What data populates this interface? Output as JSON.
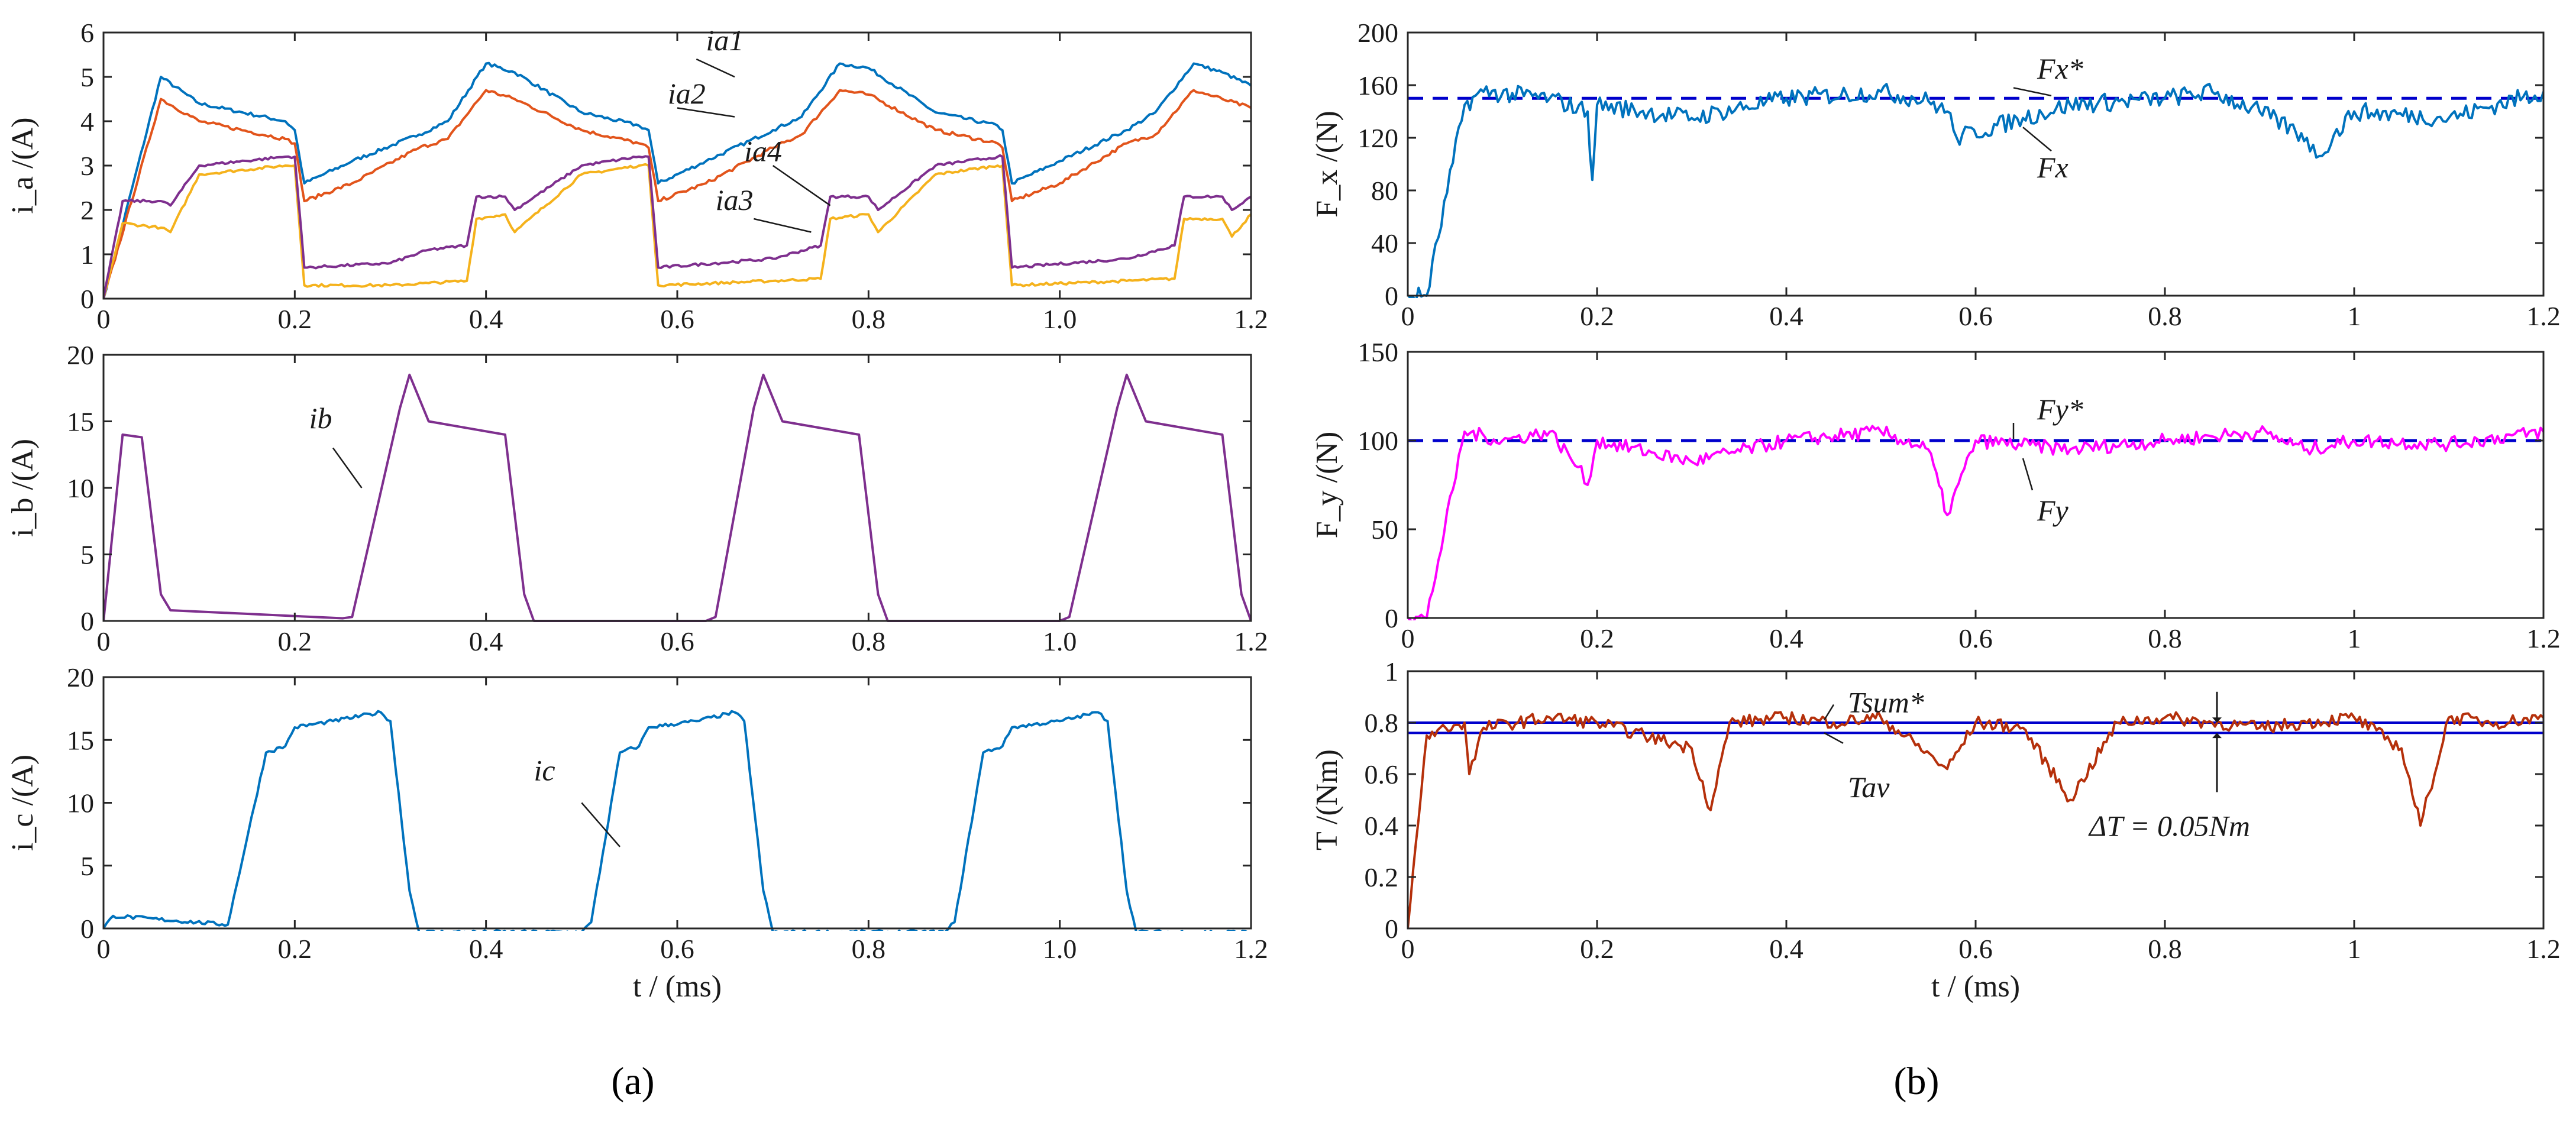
{
  "panel_labels": {
    "a": "(a)",
    "b": "(b)"
  },
  "colors": {
    "ia1": "#0072BD",
    "ia2": "#E2541B",
    "ia3": "#F5B21C",
    "ia4": "#7E2F8E",
    "ib": "#7E2F8E",
    "ic": "#0072BD",
    "fx": "#0072BD",
    "fy": "#FF00FF",
    "torque": "#B5300B",
    "ref": "#0000CC"
  },
  "chart_data": [
    {
      "id": "ia",
      "type": "line",
      "xlabel": "",
      "ylabel": "i_a /(A)",
      "xlim": [
        0,
        1.2
      ],
      "ylim": [
        0,
        6
      ],
      "xticks": [
        "0",
        "0.2",
        "0.4",
        "0.6",
        "0.8",
        "1.0",
        "1.2"
      ],
      "yticks": [
        "0",
        "1",
        "2",
        "3",
        "4",
        "5",
        "6"
      ],
      "annotations": [
        "ia1",
        "ia2",
        "ia3",
        "ia4"
      ],
      "series": [
        {
          "name": "ia1",
          "x": [
            0,
            0.06,
            0.1,
            0.19,
            0.2,
            0.21,
            0.26,
            0.33,
            0.36,
            0.4,
            0.43,
            0.5,
            0.56,
            0.57,
            0.58,
            0.63,
            0.7,
            0.73,
            0.77,
            0.8,
            0.87,
            0.935,
            0.94,
            0.95,
            1.0,
            1.07,
            1.1,
            1.14,
            1.17,
            1.2
          ],
          "values": [
            0,
            5.0,
            4.4,
            4.0,
            3.8,
            2.6,
            3.1,
            3.7,
            4.0,
            5.3,
            5.1,
            4.2,
            3.9,
            3.8,
            2.6,
            3.1,
            3.8,
            4.1,
            5.3,
            5.2,
            4.2,
            3.9,
            3.8,
            2.6,
            3.1,
            3.8,
            4.2,
            5.3,
            5.1,
            4.8
          ]
        },
        {
          "name": "ia2",
          "x": [
            0,
            0.06,
            0.1,
            0.19,
            0.2,
            0.21,
            0.26,
            0.33,
            0.36,
            0.4,
            0.43,
            0.5,
            0.56,
            0.57,
            0.58,
            0.63,
            0.7,
            0.73,
            0.77,
            0.8,
            0.87,
            0.935,
            0.94,
            0.95,
            1.0,
            1.07,
            1.1,
            1.14,
            1.17,
            1.2
          ],
          "values": [
            0,
            4.5,
            4.0,
            3.6,
            3.5,
            2.2,
            2.6,
            3.4,
            3.6,
            4.7,
            4.5,
            3.8,
            3.5,
            3.4,
            2.2,
            2.6,
            3.4,
            3.7,
            4.7,
            4.6,
            3.8,
            3.5,
            3.4,
            2.2,
            2.6,
            3.5,
            3.7,
            4.7,
            4.5,
            4.3
          ]
        },
        {
          "name": "ia3",
          "x": [
            0,
            0.02,
            0.06,
            0.07,
            0.1,
            0.19,
            0.2,
            0.21,
            0.3,
            0.34,
            0.38,
            0.39,
            0.42,
            0.43,
            0.5,
            0.56,
            0.57,
            0.58,
            0.7,
            0.75,
            0.76,
            0.8,
            0.81,
            0.87,
            0.935,
            0.94,
            0.95,
            1.07,
            1.12,
            1.13,
            1.17,
            1.18,
            1.2
          ],
          "values": [
            0,
            1.7,
            1.6,
            1.5,
            2.8,
            3.0,
            3.0,
            0.3,
            0.3,
            0.35,
            0.4,
            1.8,
            1.9,
            1.5,
            2.8,
            3.0,
            3.0,
            0.3,
            0.4,
            0.45,
            1.8,
            1.9,
            1.5,
            2.8,
            3.0,
            3.0,
            0.3,
            0.4,
            0.45,
            1.8,
            1.8,
            1.4,
            1.9
          ]
        },
        {
          "name": "ia4",
          "x": [
            0,
            0.02,
            0.06,
            0.07,
            0.1,
            0.19,
            0.2,
            0.21,
            0.3,
            0.34,
            0.38,
            0.39,
            0.42,
            0.43,
            0.5,
            0.56,
            0.57,
            0.58,
            0.7,
            0.75,
            0.76,
            0.8,
            0.81,
            0.87,
            0.935,
            0.94,
            0.95,
            1.07,
            1.12,
            1.13,
            1.17,
            1.18,
            1.2
          ],
          "values": [
            0,
            2.2,
            2.2,
            2.1,
            3.0,
            3.2,
            3.2,
            0.7,
            0.8,
            1.1,
            1.2,
            2.3,
            2.3,
            2.0,
            3.0,
            3.2,
            3.2,
            0.7,
            0.9,
            1.2,
            2.3,
            2.3,
            2.0,
            3.0,
            3.2,
            3.2,
            0.7,
            0.9,
            1.2,
            2.3,
            2.3,
            2.0,
            2.3
          ]
        }
      ]
    },
    {
      "id": "ib",
      "type": "line",
      "xlabel": "",
      "ylabel": "i_b /(A)",
      "xlim": [
        0,
        1.2
      ],
      "ylim": [
        0,
        20
      ],
      "xticks": [
        "0",
        "0.2",
        "0.4",
        "0.6",
        "0.8",
        "1.0",
        "1.2"
      ],
      "yticks": [
        "0",
        "5",
        "10",
        "15",
        "20"
      ],
      "annotations": [
        "ib"
      ],
      "series": [
        {
          "name": "ib",
          "x": [
            0,
            0.02,
            0.04,
            0.06,
            0.07,
            0.25,
            0.26,
            0.31,
            0.32,
            0.34,
            0.42,
            0.44,
            0.45,
            0.63,
            0.64,
            0.68,
            0.69,
            0.71,
            0.79,
            0.81,
            0.82,
            1.0,
            1.01,
            1.06,
            1.07,
            1.09,
            1.17,
            1.19,
            1.2
          ],
          "values": [
            0,
            14,
            13.8,
            2,
            0.8,
            0.2,
            0.3,
            16,
            18.5,
            15,
            14,
            2,
            0,
            0,
            0.3,
            16,
            18.5,
            15,
            14,
            2,
            0,
            0,
            0.3,
            16,
            18.5,
            15,
            14,
            2,
            0
          ]
        }
      ]
    },
    {
      "id": "ic",
      "type": "line",
      "xlabel": "t / (ms)",
      "ylabel": "i_c /(A)",
      "xlim": [
        0,
        1.2
      ],
      "ylim": [
        0,
        20
      ],
      "xticks": [
        "0",
        "0.2",
        "0.4",
        "0.6",
        "0.8",
        "1.0",
        "1.2"
      ],
      "yticks": [
        "0",
        "5",
        "10",
        "15",
        "20"
      ],
      "annotations": [
        "ic"
      ],
      "series": [
        {
          "name": "ic",
          "x": [
            0,
            0.01,
            0.13,
            0.17,
            0.19,
            0.2,
            0.24,
            0.29,
            0.3,
            0.32,
            0.33,
            0.5,
            0.51,
            0.54,
            0.56,
            0.57,
            0.62,
            0.66,
            0.67,
            0.69,
            0.7,
            0.88,
            0.89,
            0.92,
            0.94,
            0.95,
            1.0,
            1.04,
            1.05,
            1.07,
            1.08,
            1.2
          ],
          "values": [
            0,
            1,
            0.3,
            14,
            14.5,
            16,
            16.5,
            17.2,
            16.5,
            3,
            -0.3,
            -0.3,
            0.5,
            14,
            14.5,
            16,
            16.5,
            17.2,
            16.5,
            3,
            -0.3,
            -0.3,
            0.5,
            14,
            14.5,
            16,
            16.5,
            17.2,
            16.5,
            3,
            -0.3,
            -0.3
          ]
        }
      ]
    },
    {
      "id": "fx",
      "type": "line",
      "xlabel": "",
      "ylabel": "F_x /(N)",
      "xlim": [
        0,
        1.2
      ],
      "ylim": [
        0,
        200
      ],
      "xticks": [
        "0",
        "0.2",
        "0.4",
        "0.6",
        "0.8",
        "1",
        "1.2"
      ],
      "yticks": [
        "0",
        "40",
        "80",
        "120",
        "160",
        "200"
      ],
      "annotations": [
        "Fx*",
        "Fx"
      ],
      "series": [
        {
          "name": "Fx*",
          "style": "dashed",
          "x": [
            0,
            1.2
          ],
          "values": [
            150,
            150
          ]
        },
        {
          "name": "Fx",
          "x": [
            0,
            0.02,
            0.06,
            0.08,
            0.15,
            0.19,
            0.195,
            0.2,
            0.3,
            0.4,
            0.5,
            0.55,
            0.57,
            0.58,
            0.65,
            0.7,
            0.8,
            0.85,
            0.9,
            0.95,
            0.96,
            1.0,
            1.1,
            1.2
          ],
          "values": [
            0,
            0,
            145,
            155,
            150,
            140,
            88,
            145,
            135,
            150,
            155,
            148,
            140,
            120,
            135,
            145,
            150,
            155,
            140,
            120,
            105,
            140,
            135,
            155
          ]
        }
      ]
    },
    {
      "id": "fy",
      "type": "line",
      "xlabel": "",
      "ylabel": "F_y /(N)",
      "xlim": [
        0,
        1.2
      ],
      "ylim": [
        0,
        150
      ],
      "xticks": [
        "0",
        "0.2",
        "0.4",
        "0.6",
        "0.8",
        "1",
        "1.2"
      ],
      "yticks": [
        "0",
        "50",
        "100",
        "150"
      ],
      "annotations": [
        "Fy*",
        "Fy"
      ],
      "series": [
        {
          "name": "Fy*",
          "style": "dashed",
          "x": [
            0,
            1.2
          ],
          "values": [
            100,
            100
          ]
        },
        {
          "name": "Fy",
          "x": [
            0,
            0.02,
            0.06,
            0.1,
            0.15,
            0.18,
            0.19,
            0.2,
            0.3,
            0.4,
            0.5,
            0.55,
            0.57,
            0.6,
            0.7,
            0.8,
            0.9,
            0.95,
            1.0,
            1.1,
            1.2
          ],
          "values": [
            0,
            0,
            105,
            100,
            105,
            85,
            75,
            100,
            88,
            100,
            105,
            95,
            58,
            100,
            95,
            100,
            105,
            95,
            100,
            98,
            105
          ]
        }
      ]
    },
    {
      "id": "torque",
      "type": "line",
      "xlabel": "t / (ms)",
      "ylabel": "T /(Nm)",
      "xlim": [
        0,
        1.2
      ],
      "ylim": [
        0,
        1
      ],
      "xticks": [
        "0",
        "0.2",
        "0.4",
        "0.6",
        "0.8",
        "1",
        "1.2"
      ],
      "yticks": [
        "0",
        "0.2",
        "0.4",
        "0.6",
        "0.8",
        "1"
      ],
      "annotations": [
        "Tsum*",
        "Tav",
        "ΔT = 0.05Nm"
      ],
      "series": [
        {
          "name": "Tsum*",
          "x": [
            0,
            1.2
          ],
          "values": [
            0.8,
            0.8
          ]
        },
        {
          "name": "Tav",
          "x": [
            0,
            1.2
          ],
          "values": [
            0.76,
            0.76
          ]
        },
        {
          "name": "T",
          "x": [
            0,
            0.02,
            0.04,
            0.06,
            0.065,
            0.08,
            0.15,
            0.2,
            0.25,
            0.3,
            0.32,
            0.34,
            0.4,
            0.45,
            0.5,
            0.57,
            0.6,
            0.65,
            0.7,
            0.75,
            0.8,
            0.85,
            0.9,
            0.95,
            1.0,
            1.05,
            1.07,
            1.1,
            1.15,
            1.2
          ],
          "values": [
            0,
            0.75,
            0.78,
            0.8,
            0.6,
            0.78,
            0.82,
            0.8,
            0.75,
            0.7,
            0.46,
            0.8,
            0.82,
            0.8,
            0.82,
            0.62,
            0.8,
            0.78,
            0.5,
            0.8,
            0.82,
            0.8,
            0.78,
            0.8,
            0.82,
            0.7,
            0.4,
            0.82,
            0.8,
            0.82
          ]
        }
      ]
    }
  ]
}
